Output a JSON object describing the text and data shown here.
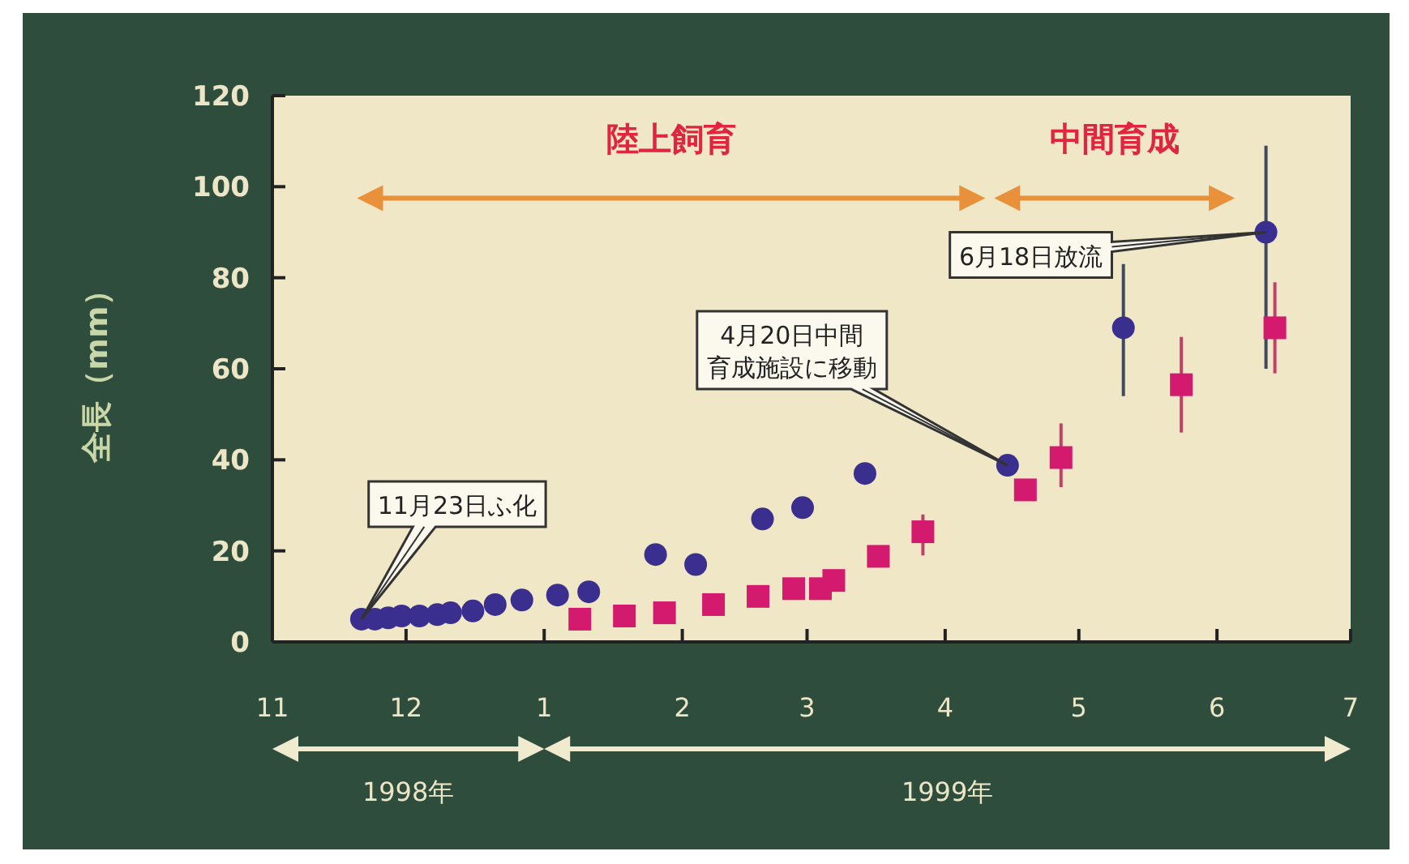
{
  "chart_data": {
    "type": "scatter",
    "ylabel": "全長（mm）",
    "xlim": [
      "1998-11-01",
      "1999-07-01"
    ],
    "xticks": [
      {
        "value": "1998-11-01",
        "label": "11"
      },
      {
        "value": "1998-12-01",
        "label": "12"
      },
      {
        "value": "1999-01-01",
        "label": "1"
      },
      {
        "value": "1999-02-01",
        "label": "2"
      },
      {
        "value": "1999-03-01",
        "label": "3"
      },
      {
        "value": "1999-04-01",
        "label": "4"
      },
      {
        "value": "1999-05-01",
        "label": "5"
      },
      {
        "value": "1999-06-01",
        "label": "6"
      },
      {
        "value": "1999-07-01",
        "label": "7"
      }
    ],
    "ylim": [
      0,
      120
    ],
    "yticks": [
      0,
      20,
      40,
      60,
      80,
      100,
      120
    ],
    "grid": false,
    "series": [
      {
        "color": "#3a2f8f",
        "marker": "circle",
        "x": [
          "1998-11-21",
          "1998-11-24",
          "1998-11-27",
          "1998-11-30",
          "1998-12-04",
          "1998-12-08",
          "1998-12-11",
          "1998-12-16",
          "1998-12-21",
          "1998-12-27",
          "1999-01-04",
          "1999-01-11",
          "1999-01-26",
          "1999-02-04",
          "1999-02-19",
          "1999-02-28",
          "1999-03-14",
          "1999-04-15",
          "1999-05-11",
          "1999-06-12"
        ],
        "values": [
          5,
          5,
          5.3,
          5.7,
          5.7,
          6,
          6.4,
          6.8,
          8.2,
          9.2,
          10.3,
          11,
          19.2,
          17,
          27,
          29.5,
          37,
          38.8,
          69,
          90
        ],
        "errors": [
          null,
          null,
          null,
          null,
          null,
          null,
          null,
          null,
          null,
          null,
          null,
          null,
          null,
          null,
          null,
          null,
          null,
          null,
          [
            54,
            83
          ],
          [
            60,
            109
          ]
        ]
      },
      {
        "color": "#d41a6e",
        "marker": "square",
        "x": [
          "1999-01-09",
          "1999-01-19",
          "1999-01-28",
          "1999-02-08",
          "1999-02-18",
          "1999-02-26",
          "1999-03-04",
          "1999-03-07",
          "1999-03-17",
          "1999-03-27",
          "1999-04-19",
          "1999-04-27",
          "1999-05-24",
          "1999-06-14"
        ],
        "values": [
          5,
          5.7,
          6.4,
          8.2,
          10,
          11.7,
          11.7,
          13.5,
          18.8,
          24.2,
          33.4,
          40.5,
          56.5,
          69
        ],
        "errors": [
          null,
          null,
          null,
          null,
          null,
          null,
          null,
          null,
          null,
          [
            19,
            28
          ],
          null,
          [
            34,
            48
          ],
          [
            46,
            67
          ],
          [
            59,
            79
          ]
        ]
      }
    ],
    "annotations": [
      {
        "text": "11月23日ふ化",
        "x": "1998-11-21",
        "y": 5
      },
      {
        "text": "4月20日中間育成施設に移動",
        "x": "1999-04-15",
        "y": 38.8
      },
      {
        "text": "6月18日放流",
        "x": "1999-06-12",
        "y": 90
      },
      "陸上飼育",
      "中間育成",
      "1998年",
      "1999年"
    ]
  }
}
